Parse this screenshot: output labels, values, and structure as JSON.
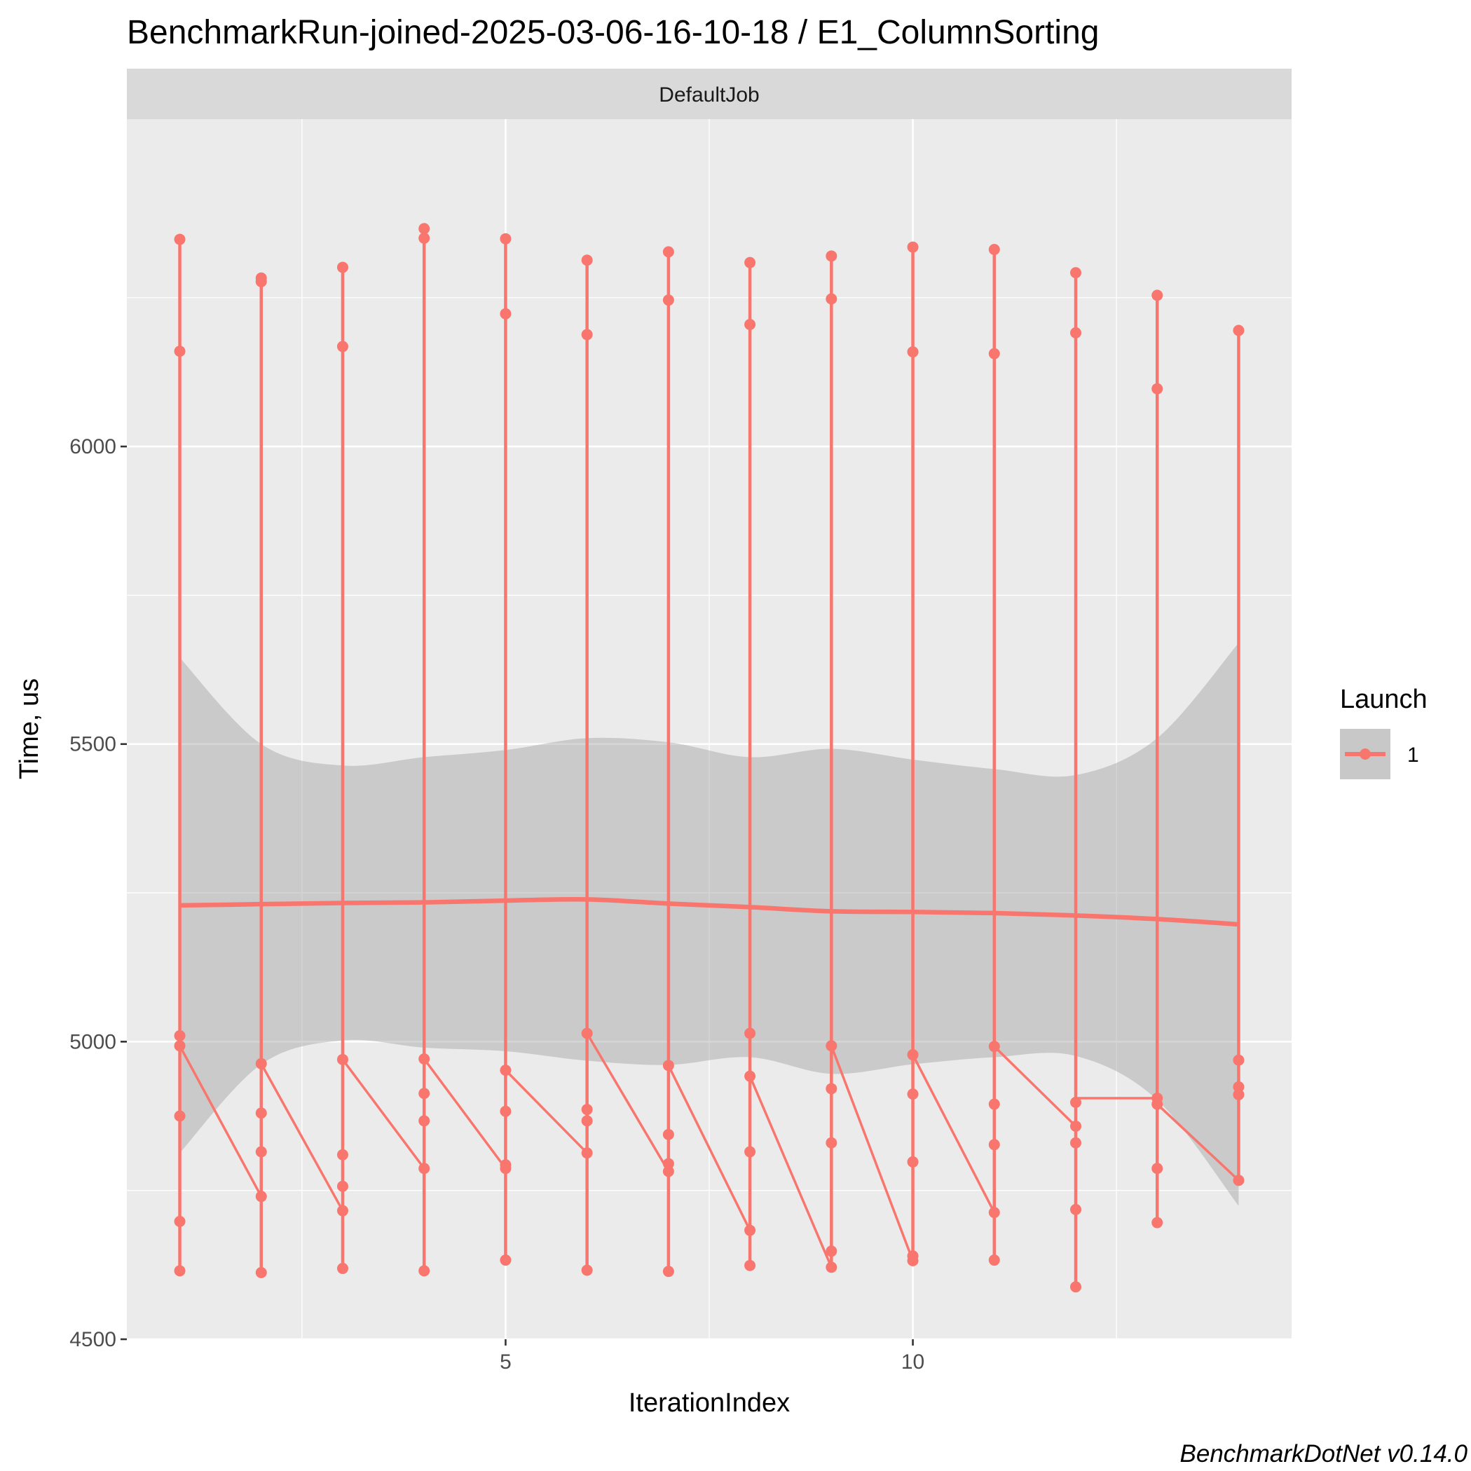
{
  "chart_data": {
    "type": "line",
    "title": "BenchmarkRun-joined-2025-03-06-16-10-18 / E1_ColumnSorting",
    "facet": "DefaultJob",
    "xlabel": "IterationIndex",
    "ylabel": "Time, us",
    "xlim": [
      0.35,
      14.65
    ],
    "ylim": [
      4500,
      6550
    ],
    "x_ticks": [
      5,
      10
    ],
    "y_ticks": [
      4500,
      5000,
      5500,
      6000
    ],
    "grid": true,
    "legend": {
      "title": "Launch",
      "position": "right",
      "entries": [
        "1"
      ]
    },
    "caption": "BenchmarkDotNet v0.14.0",
    "series_color": "#F8766D",
    "points": [
      [
        1,
        [
          6348,
          6160,
          5010,
          4993,
          4875,
          4698,
          4615
        ]
      ],
      [
        2,
        [
          6283,
          6277,
          4963,
          4880,
          4815,
          4740,
          4612
        ]
      ],
      [
        3,
        [
          6301,
          6168,
          4970,
          4810,
          4757,
          4716,
          4619
        ]
      ],
      [
        4,
        [
          6366,
          6350,
          4971,
          4913,
          4867,
          4787,
          4615
        ]
      ],
      [
        5,
        [
          6349,
          6223,
          4952,
          4883,
          4793,
          4787,
          4633
        ]
      ],
      [
        6,
        [
          6313,
          6188,
          5014,
          4886,
          4867,
          4813,
          4616
        ]
      ],
      [
        7,
        [
          6327,
          6246,
          4960,
          4844,
          4795,
          4782,
          4614
        ]
      ],
      [
        8,
        [
          6309,
          6205,
          5014,
          4942,
          4815,
          4683,
          4624
        ]
      ],
      [
        9,
        [
          6320,
          6248,
          4993,
          4921,
          4830,
          4648,
          4621
        ]
      ],
      [
        10,
        [
          6335,
          6159,
          4978,
          4912,
          4798,
          4640,
          4632
        ]
      ],
      [
        11,
        [
          6331,
          6156,
          4992,
          4895,
          4827,
          4713,
          4633
        ]
      ],
      [
        12,
        [
          6292,
          6191,
          4898,
          4858,
          4830,
          4718,
          4588
        ]
      ],
      [
        13,
        [
          6254,
          6097,
          4905,
          4895,
          4787,
          4696
        ]
      ],
      [
        14,
        [
          6195,
          4969,
          4924,
          4911,
          4767
        ]
      ]
    ],
    "sequence_line": [
      [
        1,
        5010
      ],
      [
        1,
        4993
      ],
      [
        2,
        4740
      ],
      [
        2,
        4963
      ],
      [
        3,
        4716
      ],
      [
        3,
        4970
      ],
      [
        4,
        4787
      ],
      [
        4,
        4971
      ],
      [
        5,
        4787
      ],
      [
        5,
        4952
      ],
      [
        6,
        4813
      ],
      [
        6,
        5014
      ],
      [
        7,
        4782
      ],
      [
        7,
        4960
      ],
      [
        8,
        4683
      ],
      [
        8,
        4942
      ],
      [
        9,
        4621
      ],
      [
        9,
        4993
      ],
      [
        10,
        4632
      ],
      [
        10,
        4978
      ],
      [
        11,
        4713
      ],
      [
        11,
        4992
      ],
      [
        12,
        4858
      ],
      [
        12,
        4905
      ],
      [
        13,
        4905
      ],
      [
        13,
        4895
      ],
      [
        14,
        4767
      ]
    ],
    "smooth": {
      "x": [
        1,
        2,
        3,
        4,
        5,
        6,
        7,
        8,
        9,
        10,
        11,
        12,
        13,
        14
      ],
      "fit": [
        5229,
        5231,
        5233,
        5234,
        5237,
        5239,
        5232,
        5226,
        5219,
        5218,
        5216,
        5212,
        5206,
        5197
      ],
      "upper": [
        5645,
        5500,
        5464,
        5478,
        5490,
        5510,
        5503,
        5478,
        5492,
        5474,
        5458,
        5448,
        5510,
        5670
      ],
      "lower": [
        4813,
        4962,
        5002,
        4990,
        4984,
        4968,
        4961,
        4974,
        4946,
        4962,
        4974,
        4976,
        4902,
        4724
      ]
    }
  }
}
